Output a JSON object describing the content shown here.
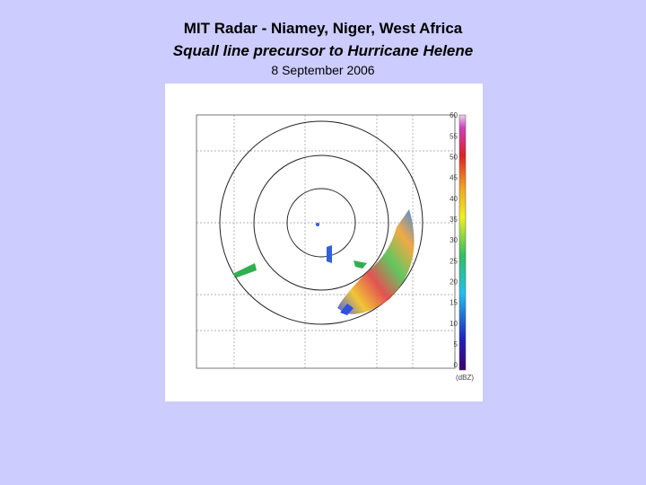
{
  "header": {
    "title": "MIT Radar - Niamey, Niger, West Africa",
    "subtitle": "Squall line precursor to Hurricane Helene",
    "date": "8 September 2006"
  },
  "radar": {
    "colorbar_labels": [
      "0",
      "5",
      "10",
      "15",
      "20",
      "25",
      "30",
      "35",
      "40",
      "45",
      "50",
      "55",
      "60"
    ],
    "unit": "(dBZ)"
  }
}
